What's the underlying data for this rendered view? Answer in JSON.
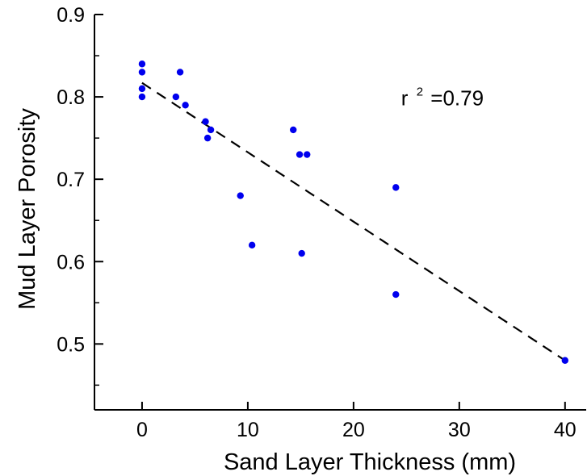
{
  "chart_data": {
    "type": "scatter",
    "title": "",
    "xlabel": "Sand Layer Thickness (mm)",
    "ylabel": "Mud Layer Porosity",
    "xlim": [
      -4.5,
      42
    ],
    "ylim": [
      0.42,
      0.9
    ],
    "x_ticks": [
      0,
      10,
      20,
      30,
      40
    ],
    "x_tick_labels": [
      "0",
      "10",
      "20",
      "30",
      "40"
    ],
    "y_ticks": [
      0.5,
      0.6,
      0.7,
      0.8,
      0.9
    ],
    "y_tick_labels": [
      "0.5",
      "0.6",
      "0.7",
      "0.8",
      "0.9"
    ],
    "y_minor_ticks": [
      0.45,
      0.55,
      0.65,
      0.75,
      0.85
    ],
    "grid": false,
    "legend": "none",
    "series": [
      {
        "color": "#0000ee",
        "points": [
          {
            "x": 0,
            "y": 0.84
          },
          {
            "x": 0,
            "y": 0.83
          },
          {
            "x": 0,
            "y": 0.81
          },
          {
            "x": 0,
            "y": 0.8
          },
          {
            "x": 3.2,
            "y": 0.8
          },
          {
            "x": 3.6,
            "y": 0.83
          },
          {
            "x": 4.1,
            "y": 0.79
          },
          {
            "x": 6.0,
            "y": 0.77
          },
          {
            "x": 6.2,
            "y": 0.75
          },
          {
            "x": 6.5,
            "y": 0.76
          },
          {
            "x": 9.3,
            "y": 0.68
          },
          {
            "x": 10.4,
            "y": 0.62
          },
          {
            "x": 14.3,
            "y": 0.76
          },
          {
            "x": 14.9,
            "y": 0.73
          },
          {
            "x": 15.1,
            "y": 0.61
          },
          {
            "x": 15.6,
            "y": 0.73
          },
          {
            "x": 24.0,
            "y": 0.69
          },
          {
            "x": 24.0,
            "y": 0.56
          },
          {
            "x": 40.0,
            "y": 0.48
          }
        ]
      }
    ],
    "fit_line": {
      "style": "dashed",
      "color": "#000000",
      "x": [
        0,
        40
      ],
      "y": [
        0.817,
        0.48
      ]
    },
    "annotation": {
      "prefix": "r",
      "superscript": "2",
      "suffix": "=0.79",
      "x": 24.5,
      "y": 0.79
    }
  }
}
